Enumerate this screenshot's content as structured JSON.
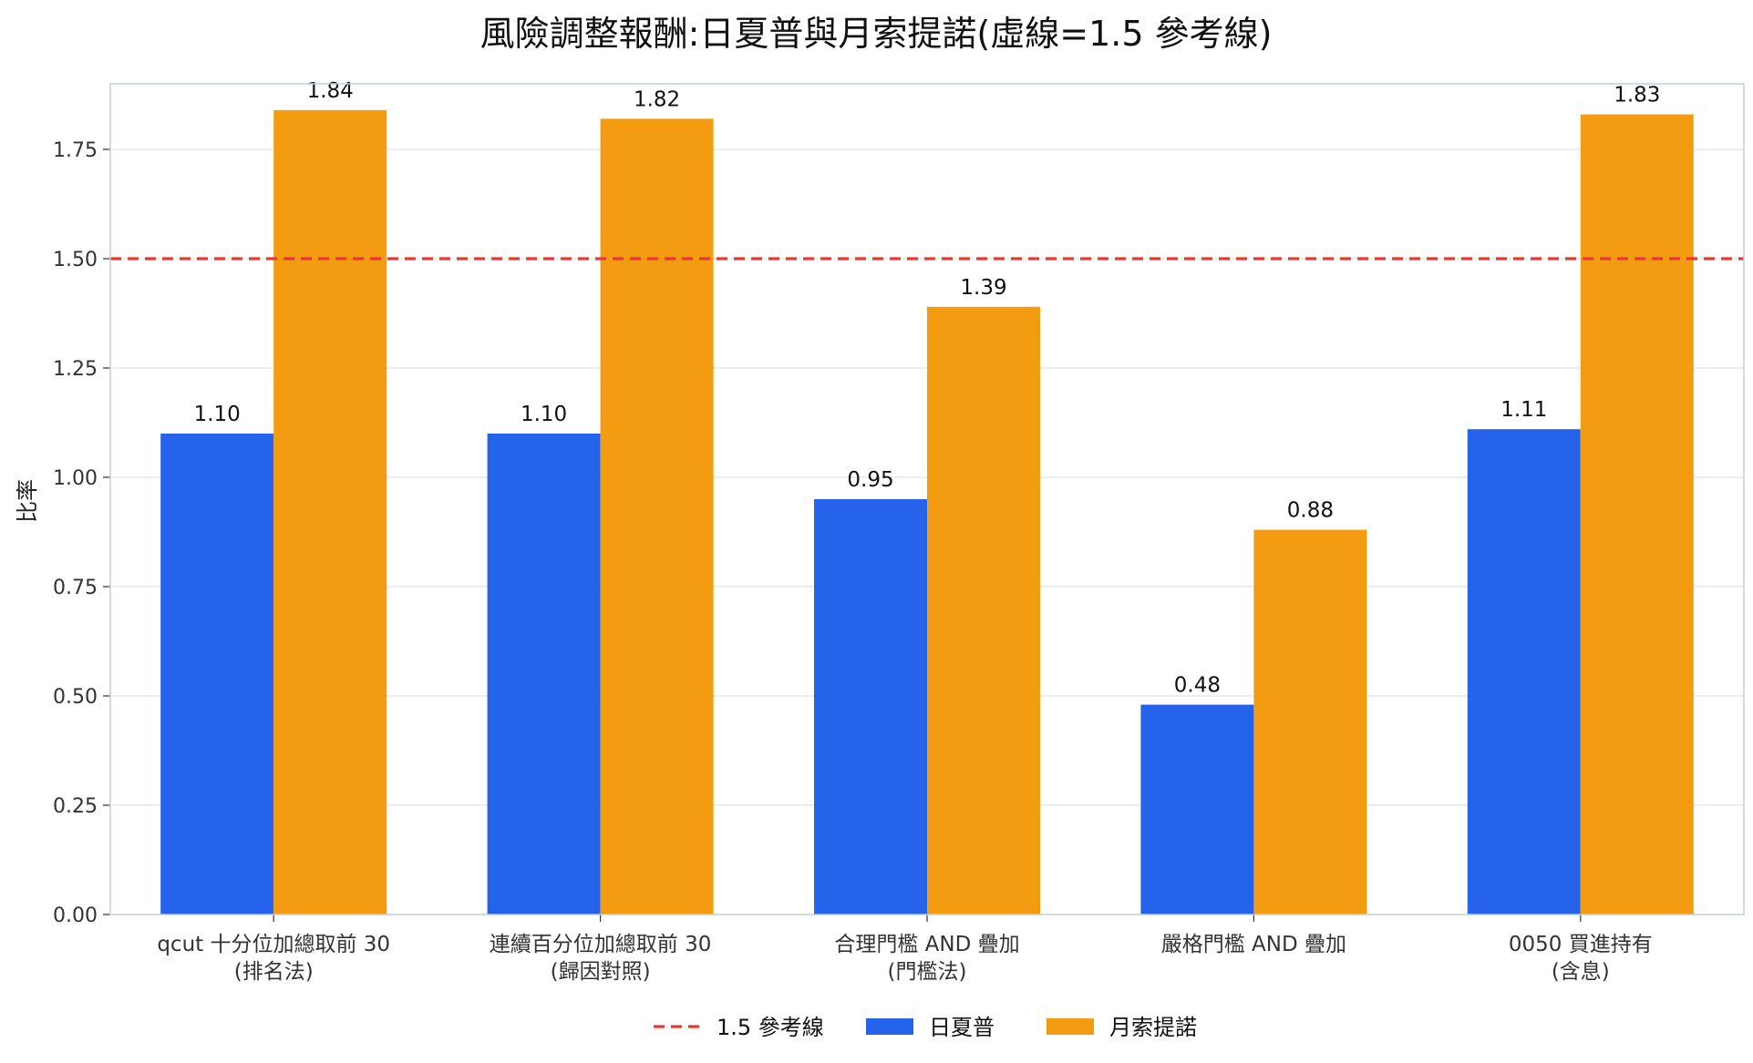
{
  "chart_data": {
    "type": "bar",
    "title": "風險調整報酬:日夏普與月索提諾(虛線=1.5 參考線)",
    "xlabel": "",
    "ylabel": "比率",
    "ylim": [
      0,
      1.9
    ],
    "yticks": [
      "0.00",
      "0.25",
      "0.50",
      "0.75",
      "1.00",
      "1.25",
      "1.50",
      "1.75"
    ],
    "grid": true,
    "legend_position": "bottom-center",
    "categories": [
      [
        "qcut 十分位加總取前 30",
        "(排名法)"
      ],
      [
        "連續百分位加總取前 30",
        "(歸因對照)"
      ],
      [
        "合理門檻 AND 疊加",
        "(門檻法)"
      ],
      [
        "嚴格門檻 AND 疊加",
        ""
      ],
      [
        "0050 買進持有",
        "(含息)"
      ]
    ],
    "series": [
      {
        "name": "日夏普",
        "color": "#2563eb",
        "values": [
          1.1,
          1.1,
          0.95,
          0.48,
          1.11
        ],
        "labels": [
          "1.10",
          "1.10",
          "0.95",
          "0.48",
          "1.11"
        ]
      },
      {
        "name": "月索提諾",
        "color": "#f39c12",
        "values": [
          1.84,
          1.82,
          1.39,
          0.88,
          1.83
        ],
        "labels": [
          "1.84",
          "1.82",
          "1.39",
          "0.88",
          "1.83"
        ]
      }
    ],
    "reference_line": {
      "value": 1.5,
      "label": "1.5 參考線",
      "color": "#e53935"
    },
    "colors": {
      "grid": "#dde3ea",
      "frame": "#c0cfdd"
    }
  }
}
